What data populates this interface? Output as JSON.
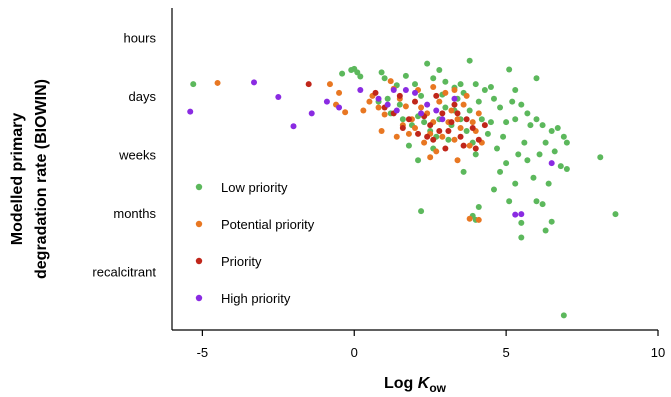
{
  "chart_data": {
    "type": "scatter",
    "title": "",
    "xlabel": "Log K_ow",
    "xlabel_main": "Log ",
    "xlabel_italic": "K",
    "xlabel_sub": "ow",
    "ylabel_line1": "Modelled primary",
    "ylabel_line2": "degradation rate (BIOWIN)",
    "xlim": [
      -6,
      10
    ],
    "ylim": [
      0,
      5.5
    ],
    "x_ticks": [
      -5,
      0,
      5,
      10
    ],
    "x_tick_labels": [
      "-5",
      "0",
      "5",
      "10"
    ],
    "y_ticks": [
      5,
      4,
      3,
      2,
      1
    ],
    "y_tick_labels": [
      "hours",
      "days",
      "weeks",
      "months",
      "recalcitrant"
    ],
    "legend_position": "lower-left",
    "grid": false,
    "series": [
      {
        "name": "Low priority",
        "color": "#5cb85c",
        "points": [
          [
            -5.3,
            4.2
          ],
          [
            -0.4,
            4.38
          ],
          [
            -0.1,
            4.44
          ],
          [
            0,
            4.46
          ],
          [
            0.1,
            4.4
          ],
          [
            0.2,
            4.33
          ],
          [
            0.9,
            4.4
          ],
          [
            1.0,
            4.3
          ],
          [
            1.4,
            4.18
          ],
          [
            1.7,
            4.34
          ],
          [
            2.0,
            4.2
          ],
          [
            2.4,
            4.55
          ],
          [
            2.6,
            4.3
          ],
          [
            2.8,
            4.44
          ],
          [
            3.0,
            4.24
          ],
          [
            3.3,
            4.14
          ],
          [
            3.5,
            4.2
          ],
          [
            3.8,
            4.6
          ],
          [
            4.0,
            4.2
          ],
          [
            4.5,
            4.15
          ],
          [
            5.1,
            4.45
          ],
          [
            5.3,
            4.1
          ],
          [
            6.0,
            4.3
          ],
          [
            2.2,
            4.0
          ],
          [
            2.9,
            4.02
          ],
          [
            3.4,
            3.95
          ],
          [
            3.6,
            4.05
          ],
          [
            4.1,
            3.9
          ],
          [
            4.3,
            4.1
          ],
          [
            4.6,
            3.95
          ],
          [
            4.8,
            3.8
          ],
          [
            5.2,
            3.9
          ],
          [
            5.5,
            3.85
          ],
          [
            5.7,
            3.7
          ],
          [
            6.0,
            3.6
          ],
          [
            6.2,
            3.5
          ],
          [
            6.5,
            3.4
          ],
          [
            6.7,
            3.45
          ],
          [
            6.9,
            3.3
          ],
          [
            7.0,
            3.2
          ],
          [
            1.2,
            3.7
          ],
          [
            1.6,
            3.6
          ],
          [
            1.9,
            3.5
          ],
          [
            2.1,
            3.65
          ],
          [
            2.5,
            3.4
          ],
          [
            2.7,
            3.3
          ],
          [
            3.1,
            3.25
          ],
          [
            3.2,
            3.5
          ],
          [
            3.7,
            3.4
          ],
          [
            3.9,
            3.2
          ],
          [
            4.4,
            3.35
          ],
          [
            4.7,
            3.1
          ],
          [
            4.9,
            3.3
          ],
          [
            5.4,
            3.0
          ],
          [
            5.6,
            3.2
          ],
          [
            5.8,
            3.5
          ],
          [
            6.1,
            3.0
          ],
          [
            6.3,
            3.2
          ],
          [
            6.6,
            3.05
          ],
          [
            6.8,
            2.8
          ],
          [
            7.0,
            2.75
          ],
          [
            5.0,
            2.85
          ],
          [
            5.9,
            2.6
          ],
          [
            6.4,
            2.5
          ],
          [
            8.1,
            2.95
          ],
          [
            8.6,
            1.98
          ],
          [
            2.2,
            2.03
          ],
          [
            3.9,
            1.95
          ],
          [
            4.0,
            1.88
          ],
          [
            5.5,
            1.83
          ],
          [
            6.3,
            1.7
          ],
          [
            6.5,
            1.85
          ],
          [
            5.5,
            1.58
          ],
          [
            6.9,
            0.25
          ],
          [
            4.1,
            2.1
          ],
          [
            5.1,
            2.2
          ],
          [
            5.3,
            2.5
          ],
          [
            4.6,
            2.4
          ],
          [
            3.6,
            2.7
          ],
          [
            2.1,
            2.9
          ],
          [
            1.8,
            3.15
          ],
          [
            2.6,
            3.1
          ],
          [
            3.0,
            3.8
          ],
          [
            3.3,
            3.75
          ],
          [
            3.8,
            3.75
          ],
          [
            4.2,
            3.6
          ],
          [
            4.5,
            3.55
          ],
          [
            5.0,
            3.55
          ],
          [
            5.3,
            3.6
          ],
          [
            0.8,
            3.9
          ],
          [
            1.1,
            3.95
          ],
          [
            1.5,
            3.85
          ],
          [
            2.3,
            3.55
          ],
          [
            2.8,
            3.6
          ],
          [
            3.5,
            3.6
          ],
          [
            4.0,
            3.0
          ],
          [
            4.8,
            2.7
          ],
          [
            6.0,
            2.2
          ],
          [
            6.2,
            2.15
          ],
          [
            5.7,
            2.9
          ]
        ]
      },
      {
        "name": "Potential priority",
        "color": "#e87722",
        "points": [
          [
            -4.5,
            4.22
          ],
          [
            -0.8,
            4.2
          ],
          [
            -0.5,
            4.05
          ],
          [
            -0.6,
            3.85
          ],
          [
            -0.3,
            3.72
          ],
          [
            0.3,
            3.75
          ],
          [
            0.6,
            4.0
          ],
          [
            0.8,
            3.8
          ],
          [
            1.0,
            3.68
          ],
          [
            1.3,
            4.12
          ],
          [
            1.5,
            3.95
          ],
          [
            1.7,
            3.82
          ],
          [
            1.9,
            3.6
          ],
          [
            2.1,
            4.1
          ],
          [
            2.2,
            3.8
          ],
          [
            2.4,
            3.7
          ],
          [
            2.6,
            3.55
          ],
          [
            2.8,
            3.9
          ],
          [
            3.0,
            4.05
          ],
          [
            3.2,
            3.75
          ],
          [
            3.4,
            3.6
          ],
          [
            3.6,
            3.85
          ],
          [
            3.7,
            4.0
          ],
          [
            3.9,
            3.55
          ],
          [
            2.0,
            3.45
          ],
          [
            2.5,
            3.35
          ],
          [
            2.9,
            3.3
          ],
          [
            3.3,
            3.25
          ],
          [
            3.5,
            3.45
          ],
          [
            4.0,
            3.4
          ],
          [
            2.3,
            3.2
          ],
          [
            1.8,
            3.35
          ],
          [
            3.8,
            3.15
          ],
          [
            4.2,
            3.2
          ],
          [
            2.7,
            3.05
          ],
          [
            3.1,
            3.55
          ],
          [
            1.6,
            3.5
          ],
          [
            2.5,
            2.95
          ],
          [
            3.4,
            2.9
          ],
          [
            3.8,
            1.9
          ],
          [
            4.1,
            1.88
          ],
          [
            0.5,
            3.9
          ],
          [
            1.2,
            4.25
          ],
          [
            2.6,
            4.15
          ],
          [
            3.3,
            4.1
          ],
          [
            4.1,
            3.7
          ],
          [
            0.9,
            3.4
          ],
          [
            1.4,
            3.3
          ]
        ]
      },
      {
        "name": "Priority",
        "color": "#c0261a",
        "points": [
          [
            -1.5,
            4.2
          ],
          [
            0.7,
            4.05
          ],
          [
            1.0,
            3.8
          ],
          [
            1.5,
            4.0
          ],
          [
            1.8,
            3.6
          ],
          [
            2.0,
            3.9
          ],
          [
            2.3,
            3.65
          ],
          [
            2.5,
            3.5
          ],
          [
            2.7,
            4.0
          ],
          [
            2.9,
            3.7
          ],
          [
            3.1,
            3.4
          ],
          [
            3.3,
            3.85
          ],
          [
            3.5,
            3.3
          ],
          [
            3.7,
            3.6
          ],
          [
            3.9,
            3.45
          ],
          [
            4.1,
            3.25
          ],
          [
            2.4,
            3.3
          ],
          [
            3.0,
            3.1
          ],
          [
            3.6,
            3.15
          ],
          [
            2.8,
            3.4
          ],
          [
            1.6,
            3.45
          ],
          [
            2.1,
            3.35
          ],
          [
            4.3,
            3.5
          ],
          [
            3.2,
            3.55
          ],
          [
            2.6,
            3.25
          ],
          [
            1.3,
            3.7
          ],
          [
            3.4,
            3.7
          ],
          [
            4.0,
            3.1
          ]
        ]
      },
      {
        "name": "High priority",
        "color": "#8a2be2",
        "points": [
          [
            -5.4,
            3.73
          ],
          [
            -3.3,
            4.23
          ],
          [
            -2.5,
            3.98
          ],
          [
            -2.0,
            3.48
          ],
          [
            -1.4,
            3.7
          ],
          [
            -0.9,
            3.9
          ],
          [
            -0.5,
            3.8
          ],
          [
            0.2,
            4.1
          ],
          [
            0.8,
            3.95
          ],
          [
            1.1,
            3.85
          ],
          [
            1.4,
            3.75
          ],
          [
            1.7,
            4.1
          ],
          [
            2.0,
            4.05
          ],
          [
            2.2,
            3.7
          ],
          [
            2.4,
            3.85
          ],
          [
            2.7,
            3.75
          ],
          [
            3.3,
            3.95
          ],
          [
            1.3,
            4.1
          ],
          [
            5.3,
            1.97
          ],
          [
            5.5,
            1.98
          ],
          [
            6.5,
            2.85
          ],
          [
            2.9,
            3.6
          ]
        ]
      }
    ]
  }
}
